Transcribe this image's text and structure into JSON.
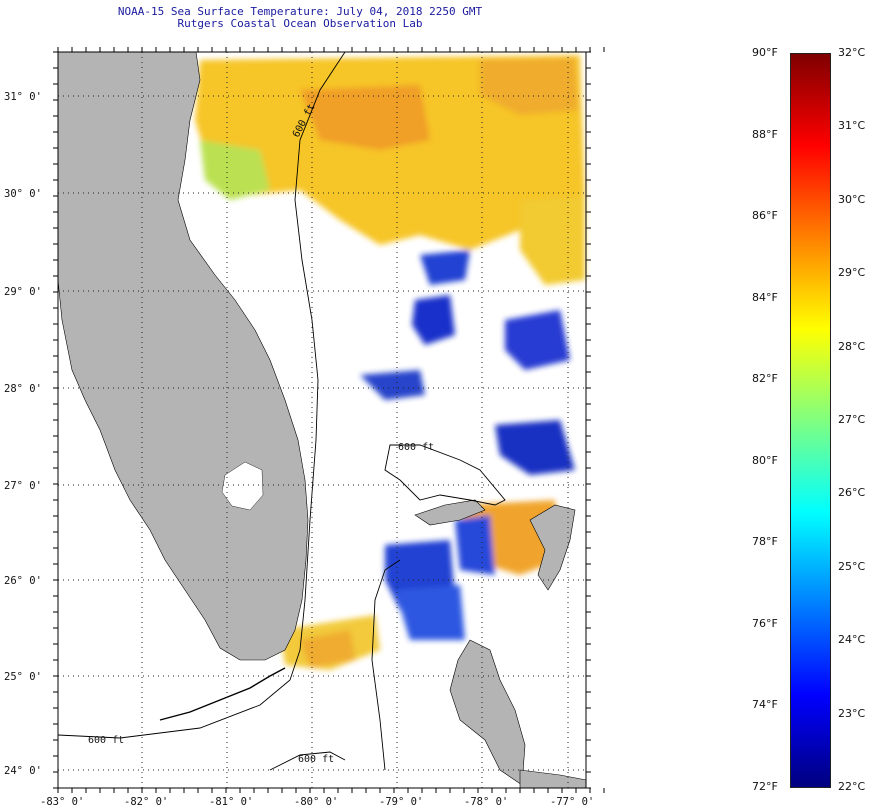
{
  "header": {
    "title": "NOAA-15 Sea Surface Temperature:  July 04, 2018 2250 GMT",
    "subtitle": "Rutgers Coastal Ocean Observation Lab"
  },
  "map": {
    "lat_labels": [
      "31° 0'",
      "30° 0'",
      "29° 0'",
      "28° 0'",
      "27° 0'",
      "26° 0'",
      "25° 0'",
      "24° 0'"
    ],
    "lon_labels": [
      "-83° 0'",
      "-82° 0'",
      "-81° 0'",
      "-80° 0'",
      "-79° 0'",
      "-78° 0'",
      "-77° 0'"
    ],
    "contour_labels": [
      "600 ft",
      "600 ft",
      "600 ft",
      "600 ft"
    ],
    "land_color": "#b4b4b4",
    "grid": "dotted"
  },
  "colorbar": {
    "fahrenheit_labels": [
      "90°F",
      "88°F",
      "86°F",
      "84°F",
      "82°F",
      "80°F",
      "78°F",
      "76°F",
      "74°F",
      "72°F"
    ],
    "celsius_labels": [
      "32°C",
      "31°C",
      "30°C",
      "29°C",
      "28°C",
      "27°C",
      "26°C",
      "25°C",
      "24°C",
      "23°C",
      "22°C"
    ],
    "colors": [
      "#7f0000",
      "#ff0000",
      "#ff8000",
      "#ffff00",
      "#80ff80",
      "#00ffff",
      "#0080ff",
      "#0000ff",
      "#00007f"
    ]
  }
}
